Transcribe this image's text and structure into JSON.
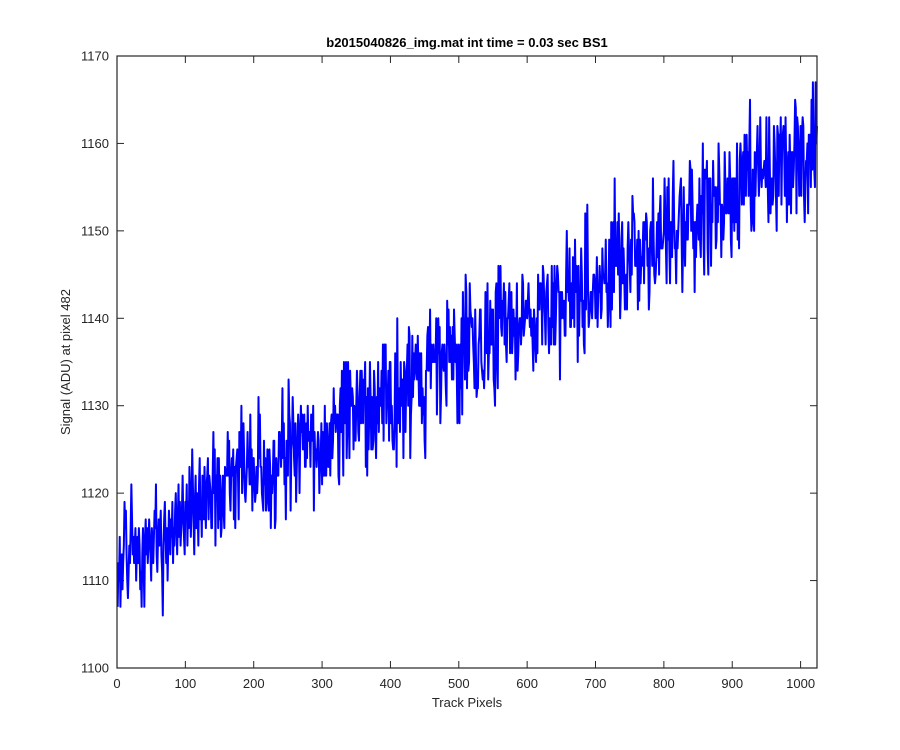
{
  "chart_data": {
    "type": "line",
    "title": "b2015040826_img.mat int time = 0.03 sec   BS1",
    "xlabel": "Track Pixels",
    "ylabel": "Signal (ADU) at pixel 482",
    "xlim": [
      0,
      1024
    ],
    "ylim": [
      1100,
      1170
    ],
    "xticks": [
      0,
      100,
      200,
      300,
      400,
      500,
      600,
      700,
      800,
      900,
      1000
    ],
    "yticks": [
      1100,
      1110,
      1120,
      1130,
      1140,
      1150,
      1160,
      1170
    ],
    "grid": false,
    "series": [
      {
        "color": "#0000ff",
        "x_start": 1,
        "x_step": 1,
        "values": [
          1107,
          1112,
          1110,
          1115,
          1107,
          1111,
          1113,
          1109,
          1112,
          1114,
          1119,
          1116,
          1118,
          1113,
          1110,
          1108,
          1111,
          1114,
          1112,
          1116,
          1121,
          1117,
          1113,
          1115,
          1112,
          1114,
          1116,
          1110,
          1113,
          1115,
          1112,
          1116,
          1114,
          1109,
          1111,
          1107,
          1113,
          1116,
          1112,
          1107,
          1115,
          1117,
          1113,
          1116,
          1112,
          1114,
          1117,
          1115,
          1113,
          1110,
          1116,
          1114,
          1112,
          1115,
          1118,
          1116,
          1121,
          1113,
          1111,
          1115,
          1117,
          1114,
          1116,
          1118,
          1113,
          1111,
          1106,
          1114,
          1117,
          1119,
          1115,
          1112,
          1116,
          1110,
          1114,
          1118,
          1116,
          1113,
          1117,
          1115,
          1119,
          1112,
          1116,
          1114,
          1118,
          1120,
          1116,
          1113,
          1117,
          1121,
          1115,
          1119,
          1114,
          1116,
          1118,
          1122,
          1117,
          1115,
          1113,
          1119
        ],
        "x_tail_start": 101,
        "trend_start": 1113.5,
        "trend_slope": 0.0445,
        "tail_values": [
          1117,
          1121,
          1114,
          1119,
          1116,
          1123,
          1120,
          1115,
          1118,
          1125,
          1121,
          1117,
          1113,
          1119,
          1122,
          1116,
          1120,
          1118,
          1114,
          1121,
          1124,
          1117,
          1119,
          1115,
          1122,
          1120,
          1117,
          1123,
          1119,
          1116
        ]
      }
    ]
  }
}
